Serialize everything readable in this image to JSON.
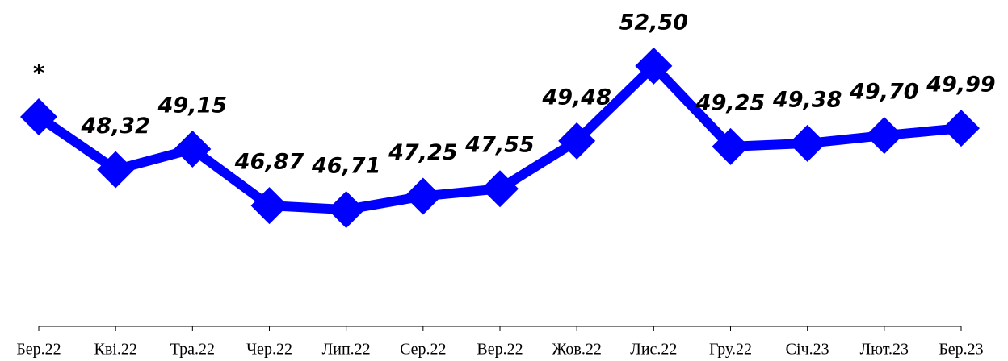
{
  "chart_data": {
    "type": "line",
    "categories": [
      "Бер.22",
      "Кві.22",
      "Тра.22",
      "Чер.22",
      "Лип.22",
      "Сер.22",
      "Вер.22",
      "Жов.22",
      "Лис.22",
      "Гру.22",
      "Січ.23",
      "Лют.23",
      "Бер.23"
    ],
    "series": [
      {
        "color": "#0000ff",
        "values": [
          50.45,
          48.32,
          49.15,
          46.87,
          46.71,
          47.25,
          47.55,
          49.48,
          52.5,
          49.25,
          49.38,
          49.7,
          49.99
        ],
        "value_labels": [
          "*",
          "48,32",
          "49,15",
          "46,87",
          "46,71",
          "47,25",
          "47,55",
          "49,48",
          "52,50",
          "49,25",
          "49,38",
          "49,70",
          "49,99"
        ]
      }
    ],
    "ylim": [
      42,
      55
    ]
  }
}
